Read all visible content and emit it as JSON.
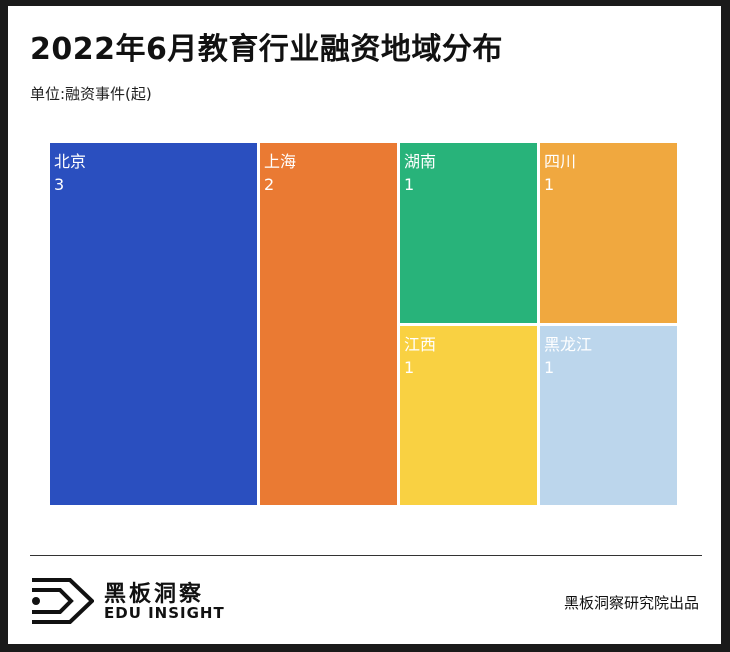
{
  "title": "2022年6月教育行业融资地域分布",
  "unit_label": "单位:融资事件(起)",
  "chart_data": {
    "type": "treemap",
    "title": "2022年6月教育行业融资地域分布",
    "unit": "单位:融资事件(起)",
    "items": [
      {
        "name": "北京",
        "value": 3,
        "color": "#2a4fbf"
      },
      {
        "name": "上海",
        "value": 2,
        "color": "#ea7a33"
      },
      {
        "name": "湖南",
        "value": 1,
        "color": "#28b37a"
      },
      {
        "name": "四川",
        "value": 1,
        "color": "#f0a83f"
      },
      {
        "name": "江西",
        "value": 1,
        "color": "#f9d142"
      },
      {
        "name": "黑龙江",
        "value": 1,
        "color": "#bcd6ec"
      }
    ]
  },
  "footer": {
    "brand_cn": "黑板洞察",
    "brand_en": "EDU INSIGHT",
    "credit": "黑板洞察研究院出品"
  }
}
